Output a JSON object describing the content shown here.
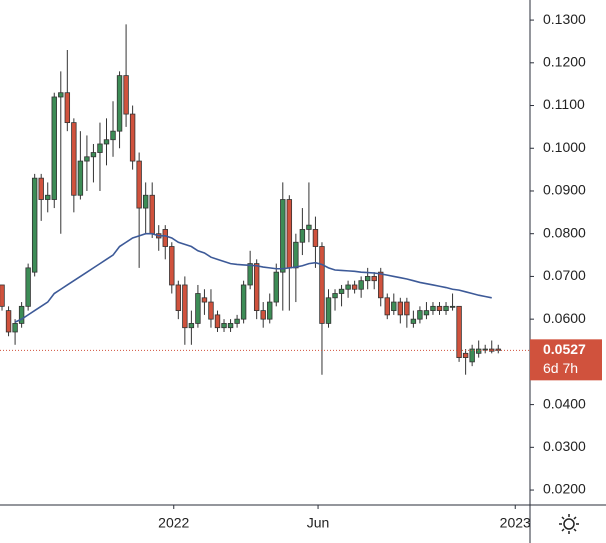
{
  "chart_data": {
    "type": "candlestick",
    "open": [
      0.068,
      0.062,
      0.057,
      0.059,
      0.063,
      0.071,
      0.093,
      0.088,
      0.088,
      0.112,
      0.113,
      0.106,
      0.089,
      0.097,
      0.098,
      0.099,
      0.101,
      0.102,
      0.104,
      0.117,
      0.108,
      0.097,
      0.086,
      0.089,
      0.08,
      0.081,
      0.077,
      0.068,
      0.068,
      0.058,
      0.059,
      0.065,
      0.064,
      0.061,
      0.058,
      0.058,
      0.059,
      0.06,
      0.068,
      0.073,
      0.062,
      0.06,
      0.064,
      0.071,
      0.088,
      0.072,
      0.078,
      0.081,
      0.081,
      0.077,
      0.059,
      0.065,
      0.066,
      0.067,
      0.068,
      0.067,
      0.069,
      0.07,
      0.071,
      0.065,
      0.062,
      0.064,
      0.064,
      0.059,
      0.06,
      0.061,
      0.062,
      0.063,
      0.062,
      0.063,
      0.063,
      0.052,
      0.05,
      0.052,
      0.053,
      0.053,
      0.053
    ],
    "high": [
      0.068,
      0.063,
      0.06,
      0.064,
      0.073,
      0.094,
      0.094,
      0.092,
      0.113,
      0.118,
      0.123,
      0.107,
      0.104,
      0.103,
      0.101,
      0.106,
      0.107,
      0.111,
      0.118,
      0.129,
      0.11,
      0.099,
      0.092,
      0.092,
      0.082,
      0.082,
      0.078,
      0.069,
      0.07,
      0.062,
      0.068,
      0.067,
      0.067,
      0.062,
      0.06,
      0.06,
      0.061,
      0.069,
      0.076,
      0.074,
      0.064,
      0.066,
      0.073,
      0.092,
      0.089,
      0.08,
      0.086,
      0.092,
      0.084,
      0.078,
      0.067,
      0.067,
      0.068,
      0.069,
      0.069,
      0.07,
      0.072,
      0.071,
      0.072,
      0.066,
      0.066,
      0.065,
      0.065,
      0.062,
      0.063,
      0.064,
      0.064,
      0.064,
      0.064,
      0.066,
      0.063,
      0.053,
      0.054,
      0.055,
      0.054,
      0.055,
      0.054
    ],
    "low": [
      0.062,
      0.056,
      0.054,
      0.058,
      0.062,
      0.07,
      0.083,
      0.085,
      0.086,
      0.08,
      0.104,
      0.085,
      0.088,
      0.09,
      0.092,
      0.09,
      0.096,
      0.098,
      0.1,
      0.105,
      0.095,
      0.072,
      0.08,
      0.079,
      0.076,
      0.074,
      0.066,
      0.06,
      0.054,
      0.054,
      0.058,
      0.061,
      0.058,
      0.057,
      0.057,
      0.057,
      0.058,
      0.059,
      0.067,
      0.06,
      0.058,
      0.059,
      0.063,
      0.062,
      0.062,
      0.064,
      0.075,
      0.078,
      0.072,
      0.047,
      0.058,
      0.062,
      0.063,
      0.065,
      0.066,
      0.065,
      0.067,
      0.067,
      0.063,
      0.06,
      0.061,
      0.059,
      0.058,
      0.058,
      0.059,
      0.06,
      0.061,
      0.061,
      0.061,
      0.062,
      0.05,
      0.047,
      0.049,
      0.051,
      0.052,
      0.052,
      0.052
    ],
    "close": [
      0.063,
      0.057,
      0.059,
      0.063,
      0.072,
      0.093,
      0.088,
      0.089,
      0.112,
      0.113,
      0.106,
      0.089,
      0.097,
      0.098,
      0.099,
      0.101,
      0.102,
      0.104,
      0.117,
      0.108,
      0.097,
      0.086,
      0.089,
      0.08,
      0.079,
      0.077,
      0.068,
      0.062,
      0.058,
      0.059,
      0.066,
      0.064,
      0.06,
      0.058,
      0.059,
      0.059,
      0.06,
      0.068,
      0.073,
      0.062,
      0.06,
      0.064,
      0.071,
      0.088,
      0.072,
      0.078,
      0.081,
      0.082,
      0.077,
      0.059,
      0.065,
      0.066,
      0.067,
      0.068,
      0.067,
      0.069,
      0.07,
      0.069,
      0.065,
      0.061,
      0.064,
      0.061,
      0.061,
      0.06,
      0.062,
      0.062,
      0.063,
      0.062,
      0.063,
      0.063,
      0.051,
      0.051,
      0.053,
      0.053,
      0.053,
      0.0525,
      0.0527
    ],
    "up_color": "#3d8c56",
    "down_color": "#d0523d",
    "moving_average": {
      "color": "#3d5a98",
      "values": [
        null,
        null,
        0.0593,
        0.06,
        0.061,
        0.062,
        0.063,
        0.064,
        0.066,
        0.067,
        0.068,
        0.069,
        0.07,
        0.071,
        0.072,
        0.073,
        0.074,
        0.075,
        0.077,
        0.078,
        0.079,
        0.0795,
        0.08,
        0.08,
        0.0795,
        0.0795,
        0.079,
        0.078,
        0.0775,
        0.077,
        0.076,
        0.0755,
        0.0745,
        0.074,
        0.0735,
        0.073,
        0.0728,
        0.0727,
        0.0726,
        0.0725,
        0.0722,
        0.072,
        0.0718,
        0.0718,
        0.072,
        0.0722,
        0.0725,
        0.073,
        0.0732,
        0.0728,
        0.072,
        0.0715,
        0.0714,
        0.0713,
        0.0712,
        0.071,
        0.0709,
        0.0708,
        0.0706,
        0.0703,
        0.07,
        0.0697,
        0.0694,
        0.069,
        0.0686,
        0.0683,
        0.068,
        0.0677,
        0.0674,
        0.067,
        0.0668,
        0.0664,
        0.066,
        0.0656,
        0.0653,
        0.065,
        null
      ]
    },
    "xlim": [
      -0.31,
      80.86
    ],
    "xticks": [
      {
        "value": 26.3,
        "label": "2022"
      },
      {
        "value": 48.4,
        "label": "Jun"
      },
      {
        "value": 78.6,
        "label": "2023"
      }
    ],
    "ylim": [
      0.0165,
      0.1347
    ],
    "yticks": [
      {
        "value": 0.13,
        "label": "0.1300"
      },
      {
        "value": 0.12,
        "label": "0.1200"
      },
      {
        "value": 0.11,
        "label": "0.1100"
      },
      {
        "value": 0.1,
        "label": "0.1000"
      },
      {
        "value": 0.09,
        "label": "0.0900"
      },
      {
        "value": 0.08,
        "label": "0.0800"
      },
      {
        "value": 0.07,
        "label": "0.0700"
      },
      {
        "value": 0.06,
        "label": "0.0600"
      },
      {
        "value": 0.05,
        "label": "0.0500"
      },
      {
        "value": 0.04,
        "label": "0.0400"
      },
      {
        "value": 0.03,
        "label": "0.0300"
      },
      {
        "value": 0.02,
        "label": "0.0200"
      }
    ],
    "last_price": {
      "value": 0.0527,
      "label": "0.0527",
      "color": "#d0523d"
    },
    "countdown": "6d 7h"
  }
}
